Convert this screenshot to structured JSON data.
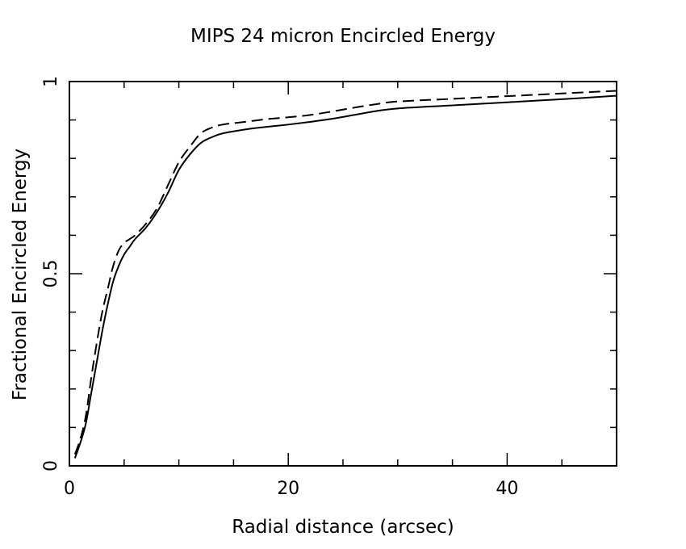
{
  "chart_data": {
    "type": "line",
    "title": "MIPS 24 micron Encircled Energy",
    "xlabel": "Radial distance (arcsec)",
    "ylabel": "Fractional Encircled Energy",
    "xlim": [
      0,
      50
    ],
    "ylim": [
      0,
      1
    ],
    "x_ticks": [
      {
        "value": 0,
        "label": "0"
      },
      {
        "value": 20,
        "label": "20"
      },
      {
        "value": 40,
        "label": "40"
      }
    ],
    "y_ticks": [
      {
        "value": 0,
        "label": "0"
      },
      {
        "value": 0.5,
        "label": "0.5"
      },
      {
        "value": 1,
        "label": "1"
      }
    ],
    "x_minor_step": 5,
    "y_minor_step": 0.1,
    "grid": false,
    "legend": false,
    "series": [
      {
        "style": "solid",
        "color": "#000000",
        "x": [
          0.5,
          1.0,
          1.5,
          2.0,
          2.5,
          3.0,
          3.5,
          4.0,
          4.5,
          5.0,
          5.5,
          6.0,
          7.0,
          8.0,
          9.0,
          10.0,
          11.0,
          12.0,
          13.0,
          14.0,
          16.0,
          18.0,
          20.0,
          22.0,
          24.0,
          26.0,
          28.0,
          30.0,
          35.0,
          40.0,
          45.0,
          50.0
        ],
        "y": [
          0.02,
          0.06,
          0.11,
          0.19,
          0.27,
          0.35,
          0.42,
          0.48,
          0.52,
          0.55,
          0.57,
          0.59,
          0.62,
          0.66,
          0.71,
          0.77,
          0.81,
          0.84,
          0.855,
          0.865,
          0.875,
          0.882,
          0.888,
          0.895,
          0.903,
          0.913,
          0.923,
          0.93,
          0.938,
          0.946,
          0.954,
          0.963
        ]
      },
      {
        "style": "dashed",
        "color": "#000000",
        "x": [
          0.5,
          1.0,
          1.5,
          2.0,
          2.5,
          3.0,
          3.5,
          4.0,
          4.5,
          5.0,
          5.5,
          6.0,
          7.0,
          8.0,
          9.0,
          10.0,
          11.0,
          12.0,
          13.0,
          14.0,
          16.0,
          18.0,
          20.0,
          22.0,
          24.0,
          26.0,
          28.0,
          30.0,
          35.0,
          40.0,
          45.0,
          50.0
        ],
        "y": [
          0.03,
          0.07,
          0.13,
          0.23,
          0.32,
          0.4,
          0.46,
          0.52,
          0.56,
          0.58,
          0.59,
          0.6,
          0.63,
          0.67,
          0.73,
          0.79,
          0.83,
          0.865,
          0.88,
          0.888,
          0.895,
          0.902,
          0.907,
          0.913,
          0.922,
          0.932,
          0.941,
          0.948,
          0.955,
          0.962,
          0.969,
          0.976
        ]
      }
    ]
  }
}
